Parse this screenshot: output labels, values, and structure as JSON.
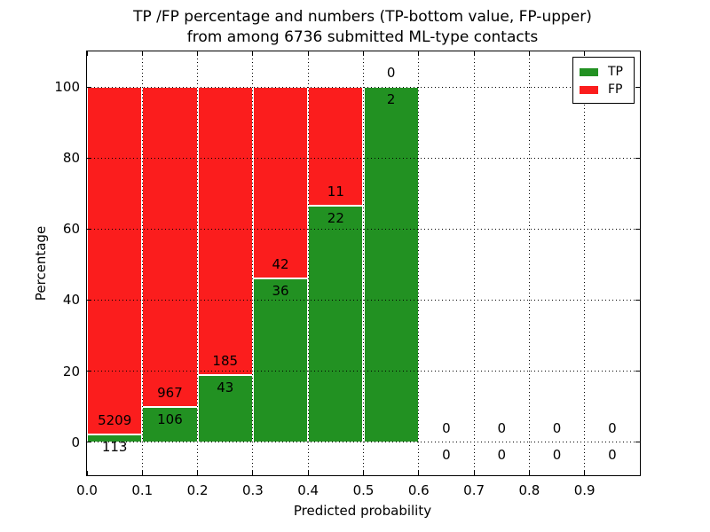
{
  "title": {
    "line1": "TP /FP percentage and numbers (TP-bottom value, FP-upper)",
    "line2": "from among 6736 submitted ML-type contacts"
  },
  "axes": {
    "xlabel": "Predicted probability",
    "ylabel": "Percentage"
  },
  "legend": {
    "items": [
      {
        "label": "TP",
        "color": "#229122"
      },
      {
        "label": "FP",
        "color": "#fb1d1d"
      }
    ]
  },
  "chart_data": {
    "type": "bar",
    "stacked": true,
    "normalized": "percent",
    "title": "TP /FP percentage and numbers (TP-bottom value, FP-upper) from among 6736 submitted ML-type contacts",
    "xlabel": "Predicted probability",
    "ylabel": "Percentage",
    "total_submitted": 6736,
    "bin_width": 0.1,
    "bin_starts": [
      0.0,
      0.1,
      0.2,
      0.3,
      0.4,
      0.5,
      0.6,
      0.7,
      0.8,
      0.9
    ],
    "series": [
      {
        "name": "TP",
        "color": "#229122",
        "counts": [
          113,
          106,
          43,
          36,
          22,
          2,
          0,
          0,
          0,
          0
        ]
      },
      {
        "name": "FP",
        "color": "#fb1d1d",
        "counts": [
          5209,
          967,
          185,
          42,
          11,
          0,
          0,
          0,
          0,
          0
        ]
      }
    ],
    "tp_percent_by_bin": [
      2.12,
      9.88,
      18.86,
      46.15,
      66.67,
      100.0,
      0,
      0,
      0,
      0
    ],
    "x_ticks": [
      "0.0",
      "0.1",
      "0.2",
      "0.3",
      "0.4",
      "0.5",
      "0.6",
      "0.7",
      "0.8",
      "0.9"
    ],
    "y_ticks": [
      0,
      20,
      40,
      60,
      80,
      100
    ],
    "xlim": [
      0.0,
      1.0
    ],
    "ylim": [
      -9.3,
      110
    ],
    "grid": true,
    "grid_style": "dotted",
    "legend_position": "upper right"
  }
}
